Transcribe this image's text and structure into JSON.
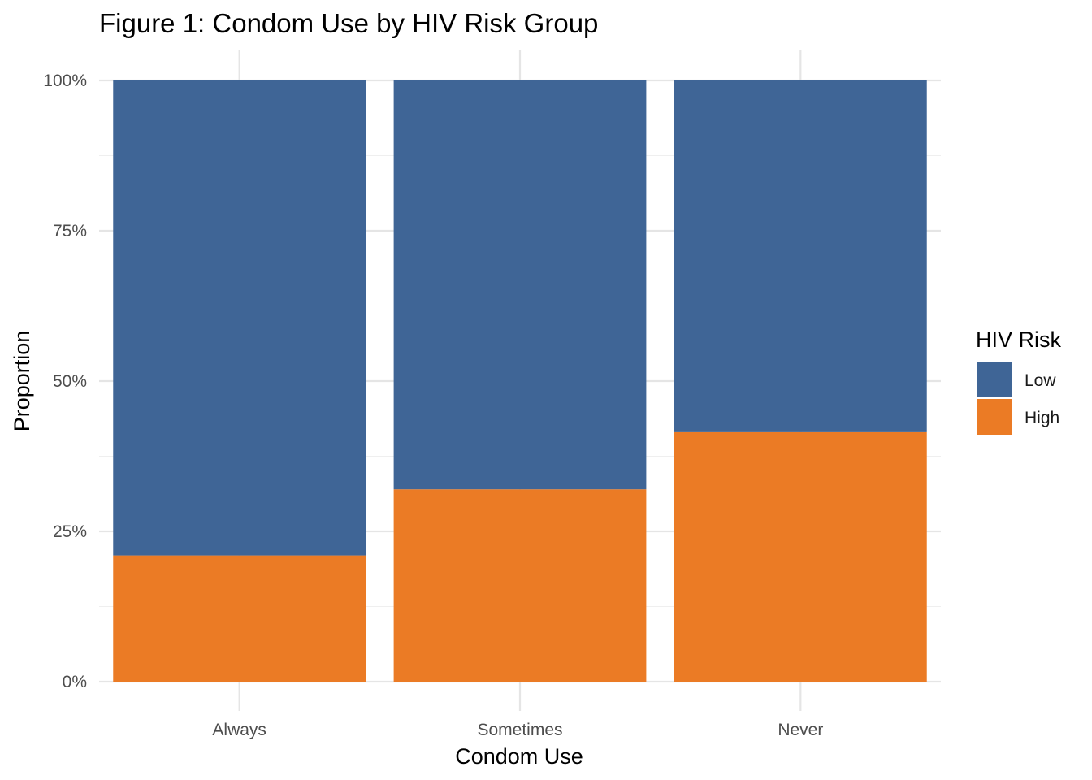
{
  "chart_data": {
    "type": "bar",
    "stacked": true,
    "title": "Figure 1: Condom Use by HIV Risk Group",
    "xlabel": "Condom Use",
    "ylabel": "Proportion",
    "categories": [
      "Always",
      "Sometimes",
      "Never"
    ],
    "series": [
      {
        "name": "Low",
        "values": [
          0.79,
          0.68,
          0.585
        ],
        "color": "#3F6596"
      },
      {
        "name": "High",
        "values": [
          0.21,
          0.32,
          0.415
        ],
        "color": "#EB7B25"
      }
    ],
    "ylim": [
      0,
      1
    ],
    "yticks": [
      0,
      0.25,
      0.5,
      0.75,
      1
    ],
    "ytick_labels": [
      "0%",
      "25%",
      "50%",
      "75%",
      "100%"
    ],
    "grid": true,
    "legend": {
      "title": "HIV Risk",
      "position": "right",
      "entries": [
        "Low",
        "High"
      ]
    }
  }
}
